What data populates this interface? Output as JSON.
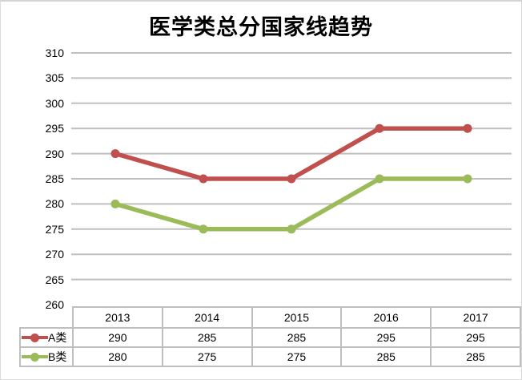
{
  "title": "医学类总分国家线趋势",
  "chart_data": {
    "type": "line",
    "title": "医学类总分国家线趋势",
    "categories": [
      "2013",
      "2014",
      "2015",
      "2016",
      "2017"
    ],
    "series": [
      {
        "name": "A类",
        "values": [
          290,
          285,
          285,
          295,
          295
        ],
        "color": "#C0504D"
      },
      {
        "name": "B类",
        "values": [
          280,
          275,
          275,
          285,
          285
        ],
        "color": "#9BBB59"
      }
    ],
    "xlabel": "",
    "ylabel": "",
    "ylim": [
      260,
      310
    ],
    "ytick_step": 5,
    "yticks": [
      260,
      265,
      270,
      275,
      280,
      285,
      290,
      295,
      300,
      305,
      310
    ],
    "grid": true,
    "gridline_color": "#BFBFBF",
    "marker": "circle",
    "legend_position": "data-table-left",
    "data_table_shown": true,
    "table_border_color": "#BFBFBF",
    "text_color": "#000000",
    "background_color": "#FFFFFF"
  }
}
